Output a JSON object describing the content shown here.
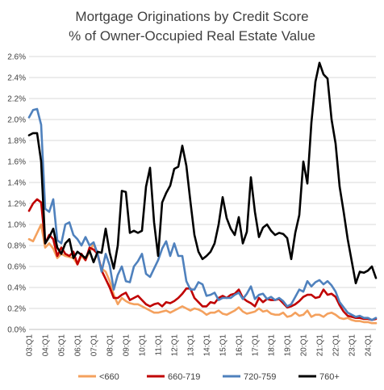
{
  "chart_data": {
    "type": "line",
    "title": "Mortgage Originations by Credit Score",
    "subtitle": "% of Owner-Occupied Real Estate Value",
    "xlabel": "",
    "ylabel": "",
    "ylim": [
      0,
      2.6
    ],
    "ytick_values": [
      0,
      0.2,
      0.4,
      0.6,
      0.8,
      1.0,
      1.2,
      1.4,
      1.6,
      1.8,
      2.0,
      2.2,
      2.4,
      2.6
    ],
    "ytick_labels": [
      "0.0%",
      "0.2%",
      "0.4%",
      "0.6%",
      "0.8%",
      "1.0%",
      "1.2%",
      "1.4%",
      "1.6%",
      "1.8%",
      "2.0%",
      "2.2%",
      "2.4%",
      "2.6%"
    ],
    "x_tick_labels": [
      "03:Q1",
      "04:Q1",
      "05:Q1",
      "06:Q1",
      "07:Q1",
      "08:Q1",
      "09:Q1",
      "10:Q1",
      "11:Q1",
      "12:Q1",
      "13:Q1",
      "14:Q1",
      "15:Q1",
      "16:Q1",
      "17:Q1",
      "18:Q1",
      "19:Q1",
      "20:Q1",
      "21:Q1",
      "22:Q1",
      "23:Q1",
      "24:Q1"
    ],
    "grid": "horizontal",
    "legend_position": "bottom",
    "series": [
      {
        "name": "<660",
        "color": "#f4a15e",
        "values": [
          0.86,
          0.84,
          0.92,
          1.0,
          0.78,
          0.82,
          0.77,
          0.68,
          0.72,
          0.7,
          0.69,
          0.68,
          0.62,
          0.7,
          0.66,
          0.74,
          0.82,
          0.7,
          0.58,
          0.55,
          0.46,
          0.33,
          0.24,
          0.3,
          0.27,
          0.25,
          0.24,
          0.24,
          0.22,
          0.2,
          0.18,
          0.16,
          0.16,
          0.17,
          0.18,
          0.16,
          0.18,
          0.2,
          0.22,
          0.2,
          0.18,
          0.2,
          0.19,
          0.17,
          0.14,
          0.16,
          0.16,
          0.18,
          0.15,
          0.14,
          0.16,
          0.18,
          0.21,
          0.17,
          0.15,
          0.16,
          0.17,
          0.2,
          0.17,
          0.18,
          0.15,
          0.14,
          0.14,
          0.16,
          0.12,
          0.13,
          0.16,
          0.13,
          0.14,
          0.18,
          0.12,
          0.14,
          0.14,
          0.12,
          0.15,
          0.16,
          0.14,
          0.11,
          0.1,
          0.11,
          0.09,
          0.08,
          0.08,
          0.07,
          0.07,
          0.06,
          0.06
        ]
      },
      {
        "name": "660-719",
        "color": "#c00000",
        "values": [
          1.13,
          1.2,
          1.24,
          1.21,
          0.82,
          0.9,
          0.86,
          0.7,
          0.78,
          0.72,
          0.7,
          0.74,
          0.62,
          0.72,
          0.66,
          0.78,
          0.76,
          0.72,
          0.56,
          0.48,
          0.4,
          0.3,
          0.3,
          0.33,
          0.35,
          0.28,
          0.3,
          0.32,
          0.28,
          0.24,
          0.22,
          0.24,
          0.25,
          0.22,
          0.26,
          0.25,
          0.27,
          0.3,
          0.34,
          0.39,
          0.39,
          0.3,
          0.26,
          0.22,
          0.22,
          0.26,
          0.25,
          0.3,
          0.32,
          0.3,
          0.33,
          0.34,
          0.38,
          0.3,
          0.27,
          0.25,
          0.22,
          0.3,
          0.26,
          0.29,
          0.28,
          0.28,
          0.29,
          0.25,
          0.21,
          0.22,
          0.24,
          0.27,
          0.31,
          0.33,
          0.33,
          0.3,
          0.31,
          0.38,
          0.33,
          0.34,
          0.31,
          0.23,
          0.17,
          0.13,
          0.12,
          0.11,
          0.11,
          0.1,
          0.1,
          0.09,
          0.1
        ]
      },
      {
        "name": "720-759",
        "color": "#4f81bd",
        "values": [
          2.02,
          2.09,
          2.1,
          1.95,
          1.15,
          1.12,
          1.24,
          0.85,
          0.82,
          1.0,
          1.02,
          0.9,
          0.86,
          0.8,
          0.88,
          0.8,
          0.83,
          0.72,
          0.55,
          0.72,
          0.61,
          0.38,
          0.52,
          0.6,
          0.46,
          0.45,
          0.6,
          0.65,
          0.72,
          0.53,
          0.5,
          0.58,
          0.66,
          0.77,
          0.84,
          0.7,
          0.82,
          0.7,
          0.7,
          0.46,
          0.38,
          0.38,
          0.45,
          0.43,
          0.32,
          0.33,
          0.35,
          0.28,
          0.3,
          0.3,
          0.3,
          0.33,
          0.35,
          0.29,
          0.34,
          0.41,
          0.29,
          0.33,
          0.34,
          0.29,
          0.31,
          0.28,
          0.3,
          0.27,
          0.22,
          0.24,
          0.31,
          0.38,
          0.36,
          0.46,
          0.41,
          0.45,
          0.47,
          0.43,
          0.46,
          0.42,
          0.36,
          0.26,
          0.21,
          0.16,
          0.14,
          0.12,
          0.13,
          0.11,
          0.11,
          0.09,
          0.11
        ]
      },
      {
        "name": "760+",
        "color": "#000000",
        "values": [
          1.85,
          1.87,
          1.87,
          1.6,
          0.82,
          0.88,
          0.96,
          0.78,
          0.72,
          0.82,
          0.86,
          0.68,
          0.74,
          0.71,
          0.68,
          0.75,
          0.64,
          0.74,
          0.73,
          0.96,
          0.73,
          0.58,
          0.8,
          1.32,
          1.31,
          0.92,
          0.94,
          0.92,
          0.94,
          1.36,
          1.54,
          1.02,
          0.7,
          1.21,
          1.3,
          1.37,
          1.53,
          1.55,
          1.75,
          1.56,
          1.22,
          0.9,
          0.74,
          0.67,
          0.7,
          0.74,
          0.82,
          1.0,
          1.26,
          1.06,
          0.96,
          0.9,
          1.07,
          0.82,
          0.93,
          1.45,
          1.12,
          0.88,
          0.97,
          1.0,
          0.94,
          0.9,
          0.92,
          0.91,
          0.87,
          0.67,
          0.92,
          1.09,
          1.6,
          1.39,
          1.97,
          2.36,
          2.54,
          2.43,
          2.39,
          2.0,
          1.77,
          1.36,
          1.12,
          0.86,
          0.65,
          0.44,
          0.55,
          0.54,
          0.56,
          0.6,
          0.49
        ]
      }
    ]
  }
}
